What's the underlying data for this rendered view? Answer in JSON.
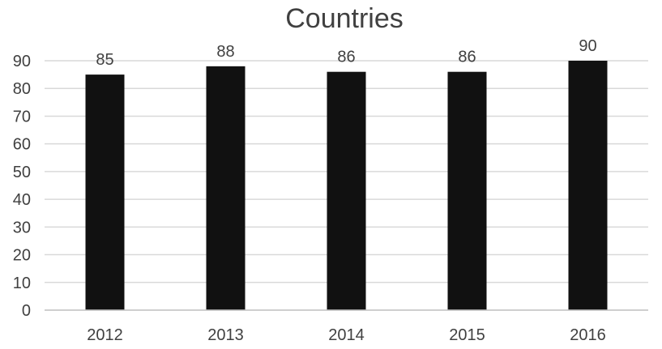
{
  "chart_data": {
    "type": "bar",
    "title": "Countries",
    "categories": [
      "2012",
      "2013",
      "2014",
      "2015",
      "2016"
    ],
    "series": [
      {
        "values": [
          85,
          88,
          86,
          86,
          90
        ],
        "color": "#111111"
      }
    ],
    "data_labels": [
      "85",
      "88",
      "86",
      "86",
      "90"
    ],
    "xlabel": "",
    "ylabel": "",
    "ylim": [
      0,
      90
    ],
    "yticks": [
      0,
      10,
      20,
      30,
      40,
      50,
      60,
      70,
      80,
      90
    ],
    "ytick_labels": [
      "0",
      "10",
      "20",
      "30",
      "40",
      "50",
      "60",
      "70",
      "80",
      "90"
    ],
    "grid": true,
    "legend": "none"
  }
}
